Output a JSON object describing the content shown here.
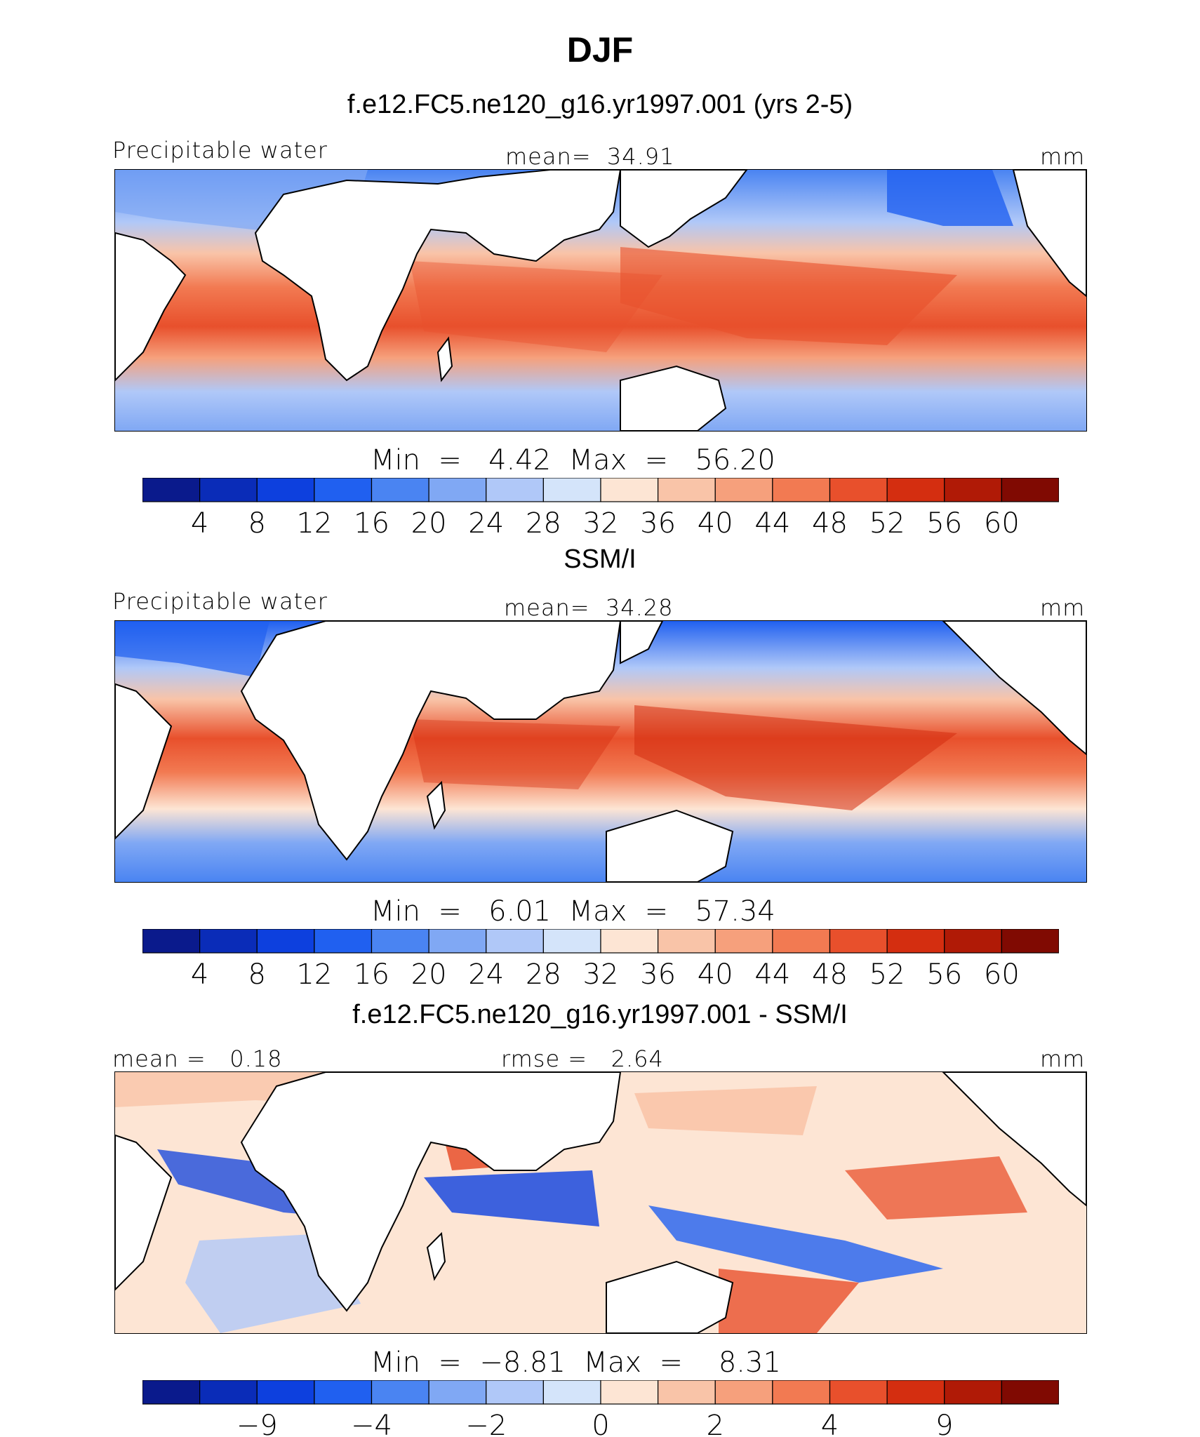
{
  "title": "DJF",
  "panels": [
    {
      "id": "model",
      "heading": "f.e12.FC5.ne120_g16.yr1997.001 (yrs 2-5)",
      "left_label": "Precipitable water",
      "center_label": "mean=  34.91",
      "right_label": "mm",
      "minmax": "Min  =   4.42  Max  =   56.20",
      "min": 4.42,
      "max": 56.2,
      "mean": 34.91
    },
    {
      "id": "obs",
      "heading": "SSM/I",
      "left_label": "Precipitable water",
      "center_label": "mean=  34.28",
      "right_label": "mm",
      "minmax": "Min  =   6.01  Max  =   57.34",
      "min": 6.01,
      "max": 57.34,
      "mean": 34.28
    },
    {
      "id": "diff",
      "heading": "f.e12.FC5.ne120_g16.yr1997.001 - SSM/I",
      "left_label": "mean =   0.18",
      "center_label": "rmse =   2.64",
      "right_label": "mm",
      "minmax": "Min  =  −8.81  Max  =    8.31",
      "min": -8.81,
      "max": 8.31,
      "mean": 0.18,
      "rmse": 2.64
    }
  ],
  "colorbars": {
    "abs": {
      "colors": [
        "#0a1a8c",
        "#0a2cb8",
        "#0d40de",
        "#2060f0",
        "#4a84f2",
        "#80a8f4",
        "#b0c8f8",
        "#d4e4fa",
        "#fde5d4",
        "#f9c4a8",
        "#f6a07c",
        "#f27a52",
        "#e8502c",
        "#d42e10",
        "#b01a06",
        "#800a02"
      ],
      "ticks": [
        "4",
        "8",
        "12",
        "16",
        "20",
        "24",
        "28",
        "32",
        "36",
        "40",
        "44",
        "48",
        "52",
        "56",
        "60"
      ]
    },
    "diff": {
      "colors": [
        "#0a1a8c",
        "#0a2cb8",
        "#0d40de",
        "#2060f0",
        "#4a84f2",
        "#80a8f4",
        "#b0c8f8",
        "#d4e4fa",
        "#fde5d4",
        "#f9c4a8",
        "#f6a07c",
        "#f27a52",
        "#e8502c",
        "#d42e10",
        "#b01a06",
        "#800a02"
      ],
      "ticks": [
        {
          "label": "−9",
          "index": 2
        },
        {
          "label": "−4",
          "index": 4
        },
        {
          "label": "−2",
          "index": 6
        },
        {
          "label": "0",
          "index": 8
        },
        {
          "label": "2",
          "index": 10
        },
        {
          "label": "4",
          "index": 12
        },
        {
          "label": "9",
          "index": 14
        }
      ]
    }
  }
}
